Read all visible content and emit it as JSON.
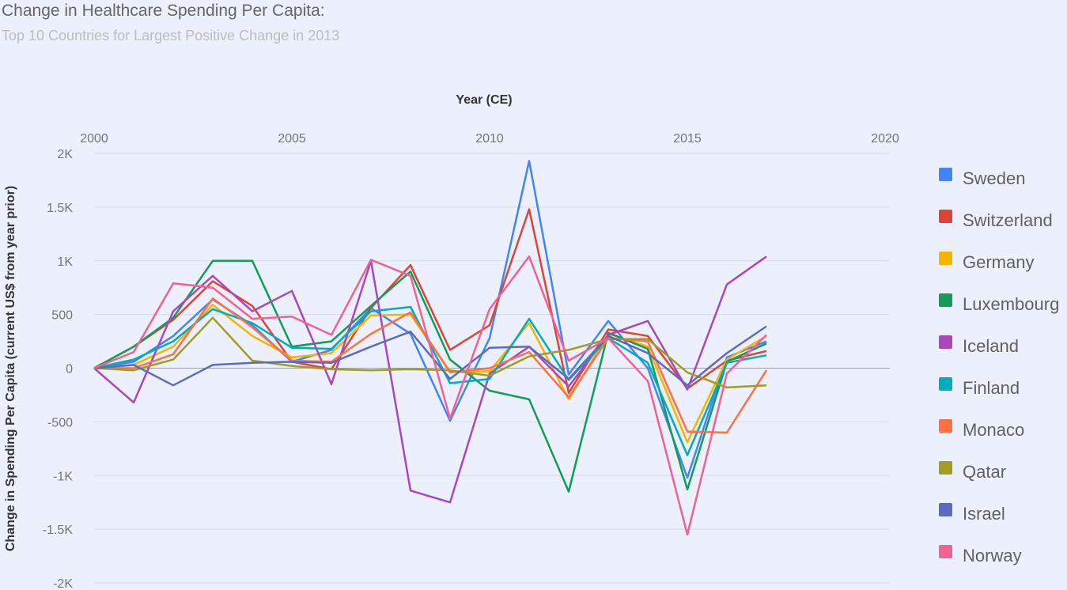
{
  "header": {
    "title": "Change in Healthcare Spending Per Capita:",
    "subtitle": "Top 10 Countries for Largest Positive Change in 2013"
  },
  "chart_data": {
    "type": "line",
    "title": "Change in Healthcare Spending Per Capita:",
    "subtitle": "Top 10 Countries for Largest Positive Change in 2013",
    "xlabel": "Year (CE)",
    "ylabel": "Change in Spending Per Capita (current US$ from year prior)",
    "x_axis_position": "top",
    "xlim": [
      2000,
      2020
    ],
    "ylim": [
      -2000,
      2000
    ],
    "x_ticks": [
      "2000",
      "2005",
      "2010",
      "2015",
      "2020"
    ],
    "y_ticks": [
      "2K",
      "1.5K",
      "1K",
      "500",
      "0",
      "-500",
      "-1K",
      "-1.5K",
      "-2K"
    ],
    "grid": true,
    "legend_position": "right",
    "x": [
      2000,
      2001,
      2002,
      2003,
      2004,
      2005,
      2006,
      2007,
      2008,
      2009,
      2010,
      2011,
      2012,
      2013,
      2014,
      2015,
      2016,
      2017
    ],
    "series": [
      {
        "name": "Sweden",
        "color": "#4285f4",
        "values": [
          0,
          60,
          300,
          640,
          400,
          60,
          170,
          560,
          320,
          -490,
          280,
          1930,
          -60,
          440,
          0,
          -1020,
          100,
          250
        ]
      },
      {
        "name": "Switzerland",
        "color": "#db4437",
        "values": [
          0,
          200,
          450,
          810,
          580,
          60,
          -10,
          560,
          960,
          170,
          400,
          1480,
          -230,
          360,
          300,
          -190,
          70,
          160
        ]
      },
      {
        "name": "Germany",
        "color": "#f4b400",
        "values": [
          0,
          30,
          200,
          590,
          300,
          100,
          140,
          490,
          500,
          -30,
          -30,
          420,
          -290,
          320,
          200,
          -690,
          80,
          300
        ]
      },
      {
        "name": "Luxembourg",
        "color": "#0f9d58",
        "values": [
          0,
          200,
          470,
          1000,
          1000,
          200,
          250,
          580,
          900,
          80,
          -210,
          -290,
          -1150,
          330,
          180,
          -1130,
          60,
          230
        ]
      },
      {
        "name": "Iceland",
        "color": "#ab47bc",
        "values": [
          0,
          -320,
          530,
          860,
          530,
          720,
          -150,
          1000,
          -1140,
          -1250,
          -50,
          200,
          -170,
          310,
          440,
          -200,
          780,
          1040
        ]
      },
      {
        "name": "Finland",
        "color": "#00acc1",
        "values": [
          0,
          80,
          250,
          550,
          420,
          190,
          180,
          530,
          570,
          -140,
          -100,
          460,
          -110,
          280,
          50,
          -810,
          50,
          120
        ]
      },
      {
        "name": "Monaco",
        "color": "#ff7043",
        "values": [
          0,
          0,
          130,
          650,
          380,
          70,
          60,
          320,
          520,
          -40,
          0,
          150,
          -270,
          280,
          250,
          -590,
          -600,
          -20
        ]
      },
      {
        "name": "Qatar",
        "color": "#9e9d24",
        "values": [
          0,
          -20,
          80,
          470,
          70,
          20,
          -10,
          -20,
          -10,
          -20,
          -70,
          110,
          170,
          270,
          270,
          -40,
          -180,
          -160
        ]
      },
      {
        "name": "Israel",
        "color": "#5c6bc0",
        "values": [
          0,
          30,
          -160,
          30,
          50,
          60,
          50,
          200,
          340,
          -100,
          190,
          200,
          -100,
          300,
          140,
          -160,
          140,
          390
        ]
      },
      {
        "name": "Norway",
        "color": "#f06292",
        "values": [
          0,
          150,
          790,
          750,
          460,
          480,
          310,
          1010,
          860,
          -470,
          550,
          1040,
          70,
          280,
          -120,
          -1550,
          -50,
          310
        ]
      }
    ]
  }
}
